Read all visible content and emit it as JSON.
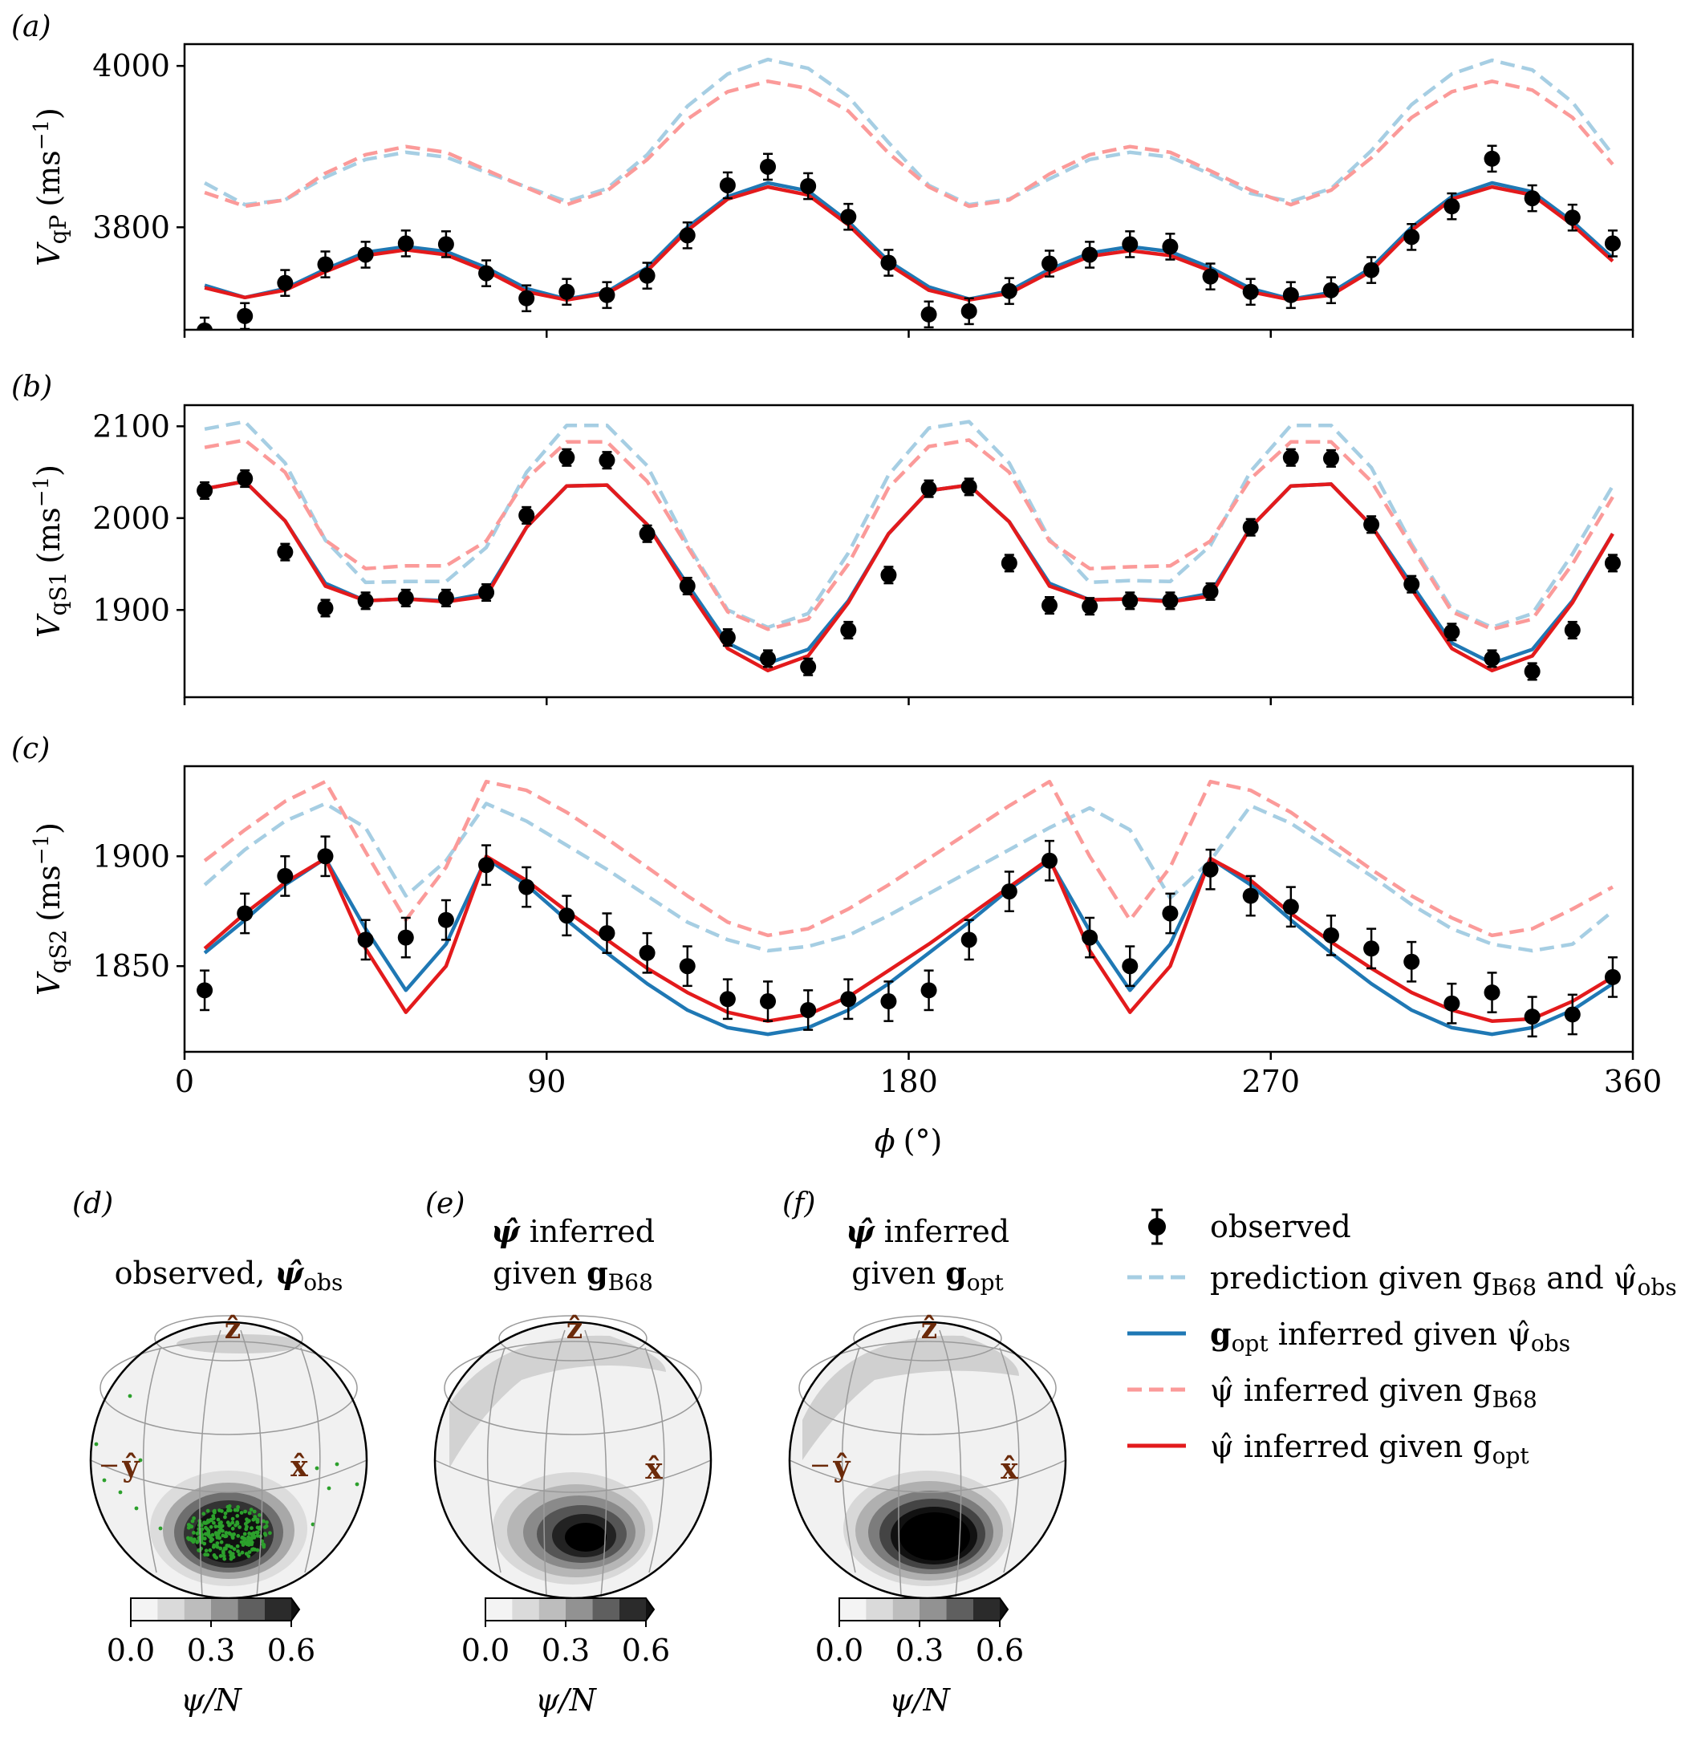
{
  "panels": [
    {
      "letter": "(a)",
      "ylabel_main": "V",
      "ylabel_sub": "qP",
      "ylabel_units": "(ms",
      "ylabel_exp": "−1",
      "ylabel_close": ")",
      "yticks": [
        "3800",
        "4000"
      ],
      "ytick_values": [
        3800,
        4000
      ],
      "ylim": [
        3673,
        4027
      ]
    },
    {
      "letter": "(b)",
      "ylabel_main": "V",
      "ylabel_sub": "qS1",
      "ylabel_units": "(ms",
      "ylabel_exp": "−1",
      "ylabel_close": ")",
      "yticks": [
        "1900",
        "2000",
        "2100"
      ],
      "ytick_values": [
        1900,
        2000,
        2100
      ],
      "ylim": [
        1805,
        2123
      ]
    },
    {
      "letter": "(c)",
      "ylabel_main": "V",
      "ylabel_sub": "qS2",
      "ylabel_units": "(ms",
      "ylabel_exp": "−1",
      "ylabel_close": ")",
      "yticks": [
        "1850",
        "1900"
      ],
      "ytick_values": [
        1850,
        1900
      ],
      "ylim": [
        1811,
        1941
      ]
    }
  ],
  "xaxis": {
    "label_main": "ϕ",
    "label_units": "(°)",
    "ticks": [
      "0",
      "90",
      "180",
      "270",
      "360"
    ],
    "tick_values": [
      0,
      90,
      180,
      270,
      360
    ],
    "xlim": [
      0,
      360
    ]
  },
  "spheres": [
    {
      "letter": "(d)",
      "line1": "observed, ",
      "line1_bold": "ψ̂",
      "line1_sub": "obs",
      "line2": "",
      "line2_bold": "",
      "line2_sub": ""
    },
    {
      "letter": "(e)",
      "line1": " inferred",
      "line1_bold": "ψ̂",
      "line1_sub": "",
      "line2": "given ",
      "line2_bold": "g",
      "line2_sub": "B68"
    },
    {
      "letter": "(f)",
      "line1": " inferred",
      "line1_bold": "ψ̂",
      "line1_sub": "",
      "line2": "given ",
      "line2_bold": "g",
      "line2_sub": "opt"
    }
  ],
  "axis_labels": {
    "z": "ẑ",
    "x": "x̂",
    "y": "ŷ",
    "minus": "−"
  },
  "colorbar": {
    "ticks": [
      "0.0",
      "0.3",
      "0.6"
    ],
    "label": "ψ/N",
    "levels": [
      0.0,
      0.1,
      0.2,
      0.3,
      0.4,
      0.5,
      0.6
    ]
  },
  "legend": [
    {
      "text": "observed"
    },
    {
      "text": "prediction given g",
      "sub": "B68",
      "text2": " and ψ̂",
      "sub2": "obs"
    },
    {
      "text": "g",
      "sub": "opt",
      "text2": " inferred given ψ̂",
      "sub2": "obs"
    },
    {
      "text": "ψ̂ inferred given g",
      "sub": "B68"
    },
    {
      "text": "ψ̂ inferred given g",
      "sub": "opt"
    }
  ],
  "colors": {
    "observed": "#000000",
    "pred_b68": "#a6cee3",
    "gopt": "#1f78b4",
    "psi_b68": "#fb9a99",
    "psi_opt": "#e31a1c",
    "markers": "#2ca02c",
    "axis_labels": "#6b2a0a"
  },
  "chart_data": [
    {
      "type": "line",
      "panel": "a",
      "ylabel": "VqP (ms−1)",
      "xlim": [
        0,
        360
      ],
      "ylim": [
        3673,
        4027
      ],
      "x": [
        5,
        15,
        25,
        35,
        45,
        55,
        65,
        75,
        85,
        95,
        105,
        115,
        125,
        135,
        145,
        155,
        165,
        175,
        185,
        195,
        205,
        215,
        225,
        235,
        245,
        255,
        265,
        275,
        285,
        295,
        305,
        315,
        325,
        335,
        345,
        355
      ],
      "series": [
        {
          "name": "observed",
          "style": "points",
          "values": [
            3672,
            3690,
            3731,
            3754,
            3766,
            3780,
            3779,
            3743,
            3712,
            3720,
            3716,
            3740,
            3790,
            3852,
            3875,
            3851,
            3813,
            3756,
            3692,
            3696,
            3721,
            3755,
            3766,
            3779,
            3776,
            3739,
            3720,
            3716,
            3722,
            3747,
            3788,
            3826,
            3885,
            3836,
            3812,
            3780
          ],
          "err": 16
        },
        {
          "name": "prediction given gB68 and ψ̂obs",
          "style": "dashed",
          "values": [
            3855,
            3828,
            3834,
            3862,
            3884,
            3893,
            3887,
            3868,
            3850,
            3832,
            3848,
            3890,
            3950,
            3990,
            4008,
            3997,
            3962,
            3905,
            3852,
            3828,
            3835,
            3860,
            3884,
            3893,
            3887,
            3866,
            3842,
            3832,
            3848,
            3895,
            3952,
            3990,
            4007,
            3995,
            3955,
            3890
          ]
        },
        {
          "name": "gopt inferred given ψ̂obs",
          "style": "solid",
          "values": [
            3728,
            3713,
            3724,
            3748,
            3769,
            3776,
            3770,
            3750,
            3724,
            3711,
            3720,
            3750,
            3800,
            3838,
            3855,
            3845,
            3807,
            3758,
            3726,
            3711,
            3721,
            3748,
            3768,
            3776,
            3770,
            3750,
            3724,
            3711,
            3719,
            3750,
            3800,
            3838,
            3855,
            3844,
            3807,
            3762
          ]
        },
        {
          "name": "ψ̂ inferred given gB68",
          "style": "dashed",
          "values": [
            3843,
            3826,
            3834,
            3867,
            3890,
            3900,
            3893,
            3871,
            3849,
            3828,
            3845,
            3884,
            3934,
            3968,
            3981,
            3972,
            3944,
            3892,
            3850,
            3826,
            3834,
            3866,
            3890,
            3900,
            3893,
            3870,
            3846,
            3828,
            3846,
            3886,
            3936,
            3968,
            3981,
            3970,
            3936,
            3878
          ]
        },
        {
          "name": "ψ̂ inferred given gopt",
          "style": "solid",
          "values": [
            3725,
            3713,
            3722,
            3745,
            3765,
            3772,
            3766,
            3746,
            3720,
            3710,
            3718,
            3746,
            3796,
            3835,
            3850,
            3840,
            3803,
            3754,
            3722,
            3710,
            3718,
            3744,
            3764,
            3771,
            3765,
            3746,
            3720,
            3710,
            3716,
            3746,
            3796,
            3835,
            3850,
            3840,
            3803,
            3758
          ]
        }
      ]
    },
    {
      "type": "line",
      "panel": "b",
      "ylabel": "VqS1 (ms−1)",
      "xlim": [
        0,
        360
      ],
      "ylim": [
        1805,
        2123
      ],
      "x": [
        5,
        15,
        25,
        35,
        45,
        55,
        65,
        75,
        85,
        95,
        105,
        115,
        125,
        135,
        145,
        155,
        165,
        175,
        185,
        195,
        205,
        215,
        225,
        235,
        245,
        255,
        265,
        275,
        285,
        295,
        305,
        315,
        325,
        335,
        345,
        355
      ],
      "series": [
        {
          "name": "observed",
          "style": "points",
          "values": [
            2030,
            2043,
            1963,
            1902,
            1910,
            1913,
            1913,
            1919,
            2003,
            2066,
            2063,
            1983,
            1926,
            1870,
            1847,
            1838,
            1878,
            1938,
            2032,
            2034,
            1951,
            1905,
            1904,
            1910,
            1910,
            1920,
            1990,
            2066,
            2065,
            1993,
            1928,
            1876,
            1847,
            1833,
            1878,
            1951
          ],
          "err": 9
        },
        {
          "name": "prediction given gB68 and ψ̂obs",
          "style": "dashed",
          "values": [
            2097,
            2105,
            2060,
            1976,
            1930,
            1931,
            1931,
            1968,
            2050,
            2101,
            2101,
            2057,
            1972,
            1900,
            1881,
            1896,
            1962,
            2047,
            2098,
            2105,
            2060,
            1977,
            1930,
            1932,
            1931,
            1970,
            2051,
            2101,
            2101,
            2055,
            1972,
            1901,
            1881,
            1896,
            1961,
            2035
          ]
        },
        {
          "name": "gopt inferred given ψ̂obs",
          "style": "solid",
          "values": [
            2032,
            2040,
            1997,
            1929,
            1910,
            1912,
            1910,
            1918,
            1990,
            2035,
            2036,
            1993,
            1928,
            1864,
            1842,
            1857,
            1910,
            1983,
            2030,
            2036,
            1996,
            1929,
            1911,
            1912,
            1910,
            1918,
            1990,
            2035,
            2037,
            1992,
            1928,
            1864,
            1842,
            1857,
            1910,
            1983
          ]
        },
        {
          "name": "ψ̂ inferred given gB68",
          "style": "dashed",
          "values": [
            2077,
            2085,
            2050,
            1976,
            1945,
            1948,
            1948,
            1975,
            2043,
            2083,
            2083,
            2040,
            1969,
            1898,
            1879,
            1890,
            1950,
            2033,
            2078,
            2085,
            2050,
            1975,
            1945,
            1947,
            1948,
            1975,
            2043,
            2083,
            2083,
            2040,
            1969,
            1898,
            1879,
            1890,
            1950,
            2023
          ]
        },
        {
          "name": "ψ̂ inferred given gopt",
          "style": "solid",
          "values": [
            2032,
            2040,
            1997,
            1926,
            1910,
            1912,
            1909,
            1915,
            1990,
            2035,
            2036,
            1993,
            1923,
            1858,
            1834,
            1850,
            1908,
            1983,
            2030,
            2036,
            1996,
            1926,
            1911,
            1912,
            1909,
            1915,
            1990,
            2035,
            2037,
            1992,
            1923,
            1858,
            1834,
            1850,
            1908,
            1983
          ]
        }
      ]
    },
    {
      "type": "line",
      "panel": "c",
      "xlabel": "ϕ (°)",
      "ylabel": "VqS2 (ms−1)",
      "xlim": [
        0,
        360
      ],
      "ylim": [
        1811,
        1941
      ],
      "x": [
        5,
        15,
        25,
        35,
        45,
        55,
        65,
        75,
        85,
        95,
        105,
        115,
        125,
        135,
        145,
        155,
        165,
        175,
        185,
        195,
        205,
        215,
        225,
        235,
        245,
        255,
        265,
        275,
        285,
        295,
        305,
        315,
        325,
        335,
        345,
        355
      ],
      "series": [
        {
          "name": "observed",
          "style": "points",
          "values": [
            1839,
            1874,
            1891,
            1900,
            1862,
            1863,
            1871,
            1896,
            1886,
            1873,
            1865,
            1856,
            1850,
            1835,
            1834,
            1830,
            1835,
            1834,
            1839,
            1862,
            1884,
            1898,
            1863,
            1850,
            1874,
            1894,
            1882,
            1877,
            1864,
            1858,
            1852,
            1833,
            1838,
            1827,
            1828,
            1845
          ],
          "err": 9
        },
        {
          "name": "prediction given gB68 and ψ̂obs",
          "style": "dashed",
          "values": [
            1887,
            1903,
            1916,
            1924,
            1913,
            1882,
            1898,
            1924,
            1916,
            1905,
            1894,
            1882,
            1870,
            1862,
            1857,
            1859,
            1864,
            1873,
            1883,
            1893,
            1903,
            1913,
            1922,
            1912,
            1881,
            1898,
            1923,
            1915,
            1903,
            1891,
            1878,
            1867,
            1860,
            1857,
            1860,
            1875
          ]
        },
        {
          "name": "gopt inferred given ψ̂obs",
          "style": "solid",
          "values": [
            1856,
            1871,
            1887,
            1899,
            1867,
            1839,
            1860,
            1899,
            1887,
            1871,
            1856,
            1842,
            1830,
            1822,
            1819,
            1822,
            1830,
            1842,
            1856,
            1870,
            1885,
            1898,
            1866,
            1839,
            1860,
            1899,
            1887,
            1871,
            1856,
            1842,
            1830,
            1822,
            1819,
            1822,
            1830,
            1842
          ]
        },
        {
          "name": "ψ̂ inferred given gB68",
          "style": "dashed",
          "values": [
            1898,
            1912,
            1925,
            1934,
            1902,
            1871,
            1895,
            1934,
            1930,
            1920,
            1908,
            1895,
            1882,
            1870,
            1864,
            1867,
            1876,
            1887,
            1899,
            1911,
            1923,
            1934,
            1900,
            1871,
            1895,
            1934,
            1930,
            1920,
            1907,
            1894,
            1882,
            1872,
            1864,
            1867,
            1876,
            1886
          ]
        },
        {
          "name": "ψ̂ inferred given gopt",
          "style": "solid",
          "values": [
            1858,
            1874,
            1888,
            1899,
            1858,
            1829,
            1850,
            1900,
            1889,
            1875,
            1862,
            1849,
            1838,
            1829,
            1825,
            1828,
            1836,
            1848,
            1860,
            1873,
            1886,
            1899,
            1857,
            1829,
            1850,
            1899,
            1889,
            1874,
            1861,
            1849,
            1838,
            1830,
            1825,
            1826,
            1834,
            1845
          ]
        }
      ]
    }
  ]
}
